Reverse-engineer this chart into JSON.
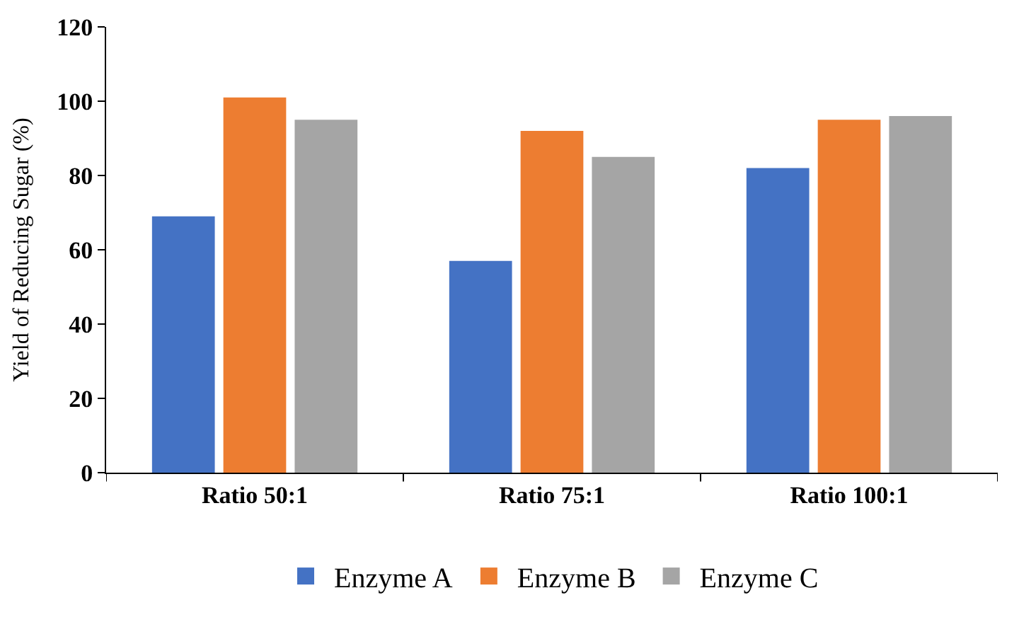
{
  "chart_data": {
    "type": "bar",
    "ylabel": "Yield of Reducing Sugar (%)",
    "categories": [
      "Ratio 50:1",
      "Ratio 75:1",
      "Ratio 100:1"
    ],
    "series": [
      {
        "name": "Enzyme A",
        "color": "#4472c4",
        "values": [
          69,
          57,
          82
        ]
      },
      {
        "name": "Enzyme B",
        "color": "#ed7d31",
        "values": [
          101,
          92,
          95
        ]
      },
      {
        "name": "Enzyme C",
        "color": "#a5a5a5",
        "values": [
          95,
          85,
          96
        ]
      }
    ],
    "ylim": [
      0,
      120
    ],
    "yticks": [
      0,
      20,
      40,
      60,
      80,
      100,
      120
    ],
    "legend": "bottom"
  }
}
